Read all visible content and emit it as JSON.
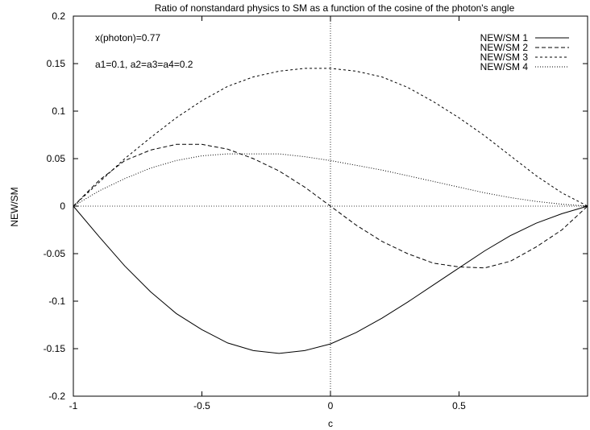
{
  "chart_data": {
    "type": "line",
    "title": "Ratio of nonstandard physics to SM as a function of the cosine of the photon's angle",
    "xlabel": "c",
    "ylabel": "NEW/SM",
    "xlim": [
      -1,
      1
    ],
    "ylim": [
      -0.2,
      0.2
    ],
    "x_ticks": [
      -1,
      -0.5,
      0,
      0.5,
      1
    ],
    "x_tick_labels": [
      "-1",
      "-0.5",
      "0",
      "0.5",
      ""
    ],
    "y_ticks": [
      -0.2,
      -0.15,
      -0.1,
      -0.05,
      0,
      0.05,
      0.1,
      0.15,
      0.2
    ],
    "y_tick_labels": [
      "-0.2",
      "-0.15",
      "-0.1",
      "-0.05",
      "0",
      "0.05",
      "0.1",
      "0.15",
      "0.2"
    ],
    "grid": false,
    "legend_position": "top-right",
    "annotations": [
      "x(photon)=0.77",
      "a1=0.1, a2=a3=a4=0.2"
    ],
    "x": [
      -1,
      -0.9,
      -0.8,
      -0.7,
      -0.6,
      -0.5,
      -0.4,
      -0.3,
      -0.2,
      -0.1,
      0,
      0.1,
      0.2,
      0.3,
      0.4,
      0.5,
      0.6,
      0.7,
      0.8,
      0.9,
      1
    ],
    "series": [
      {
        "name": "NEW/SM 1",
        "values": [
          0,
          -0.032,
          -0.063,
          -0.09,
          -0.113,
          -0.13,
          -0.144,
          -0.152,
          -0.155,
          -0.152,
          -0.145,
          -0.133,
          -0.118,
          -0.101,
          -0.083,
          -0.065,
          -0.047,
          -0.031,
          -0.018,
          -0.008,
          0
        ]
      },
      {
        "name": "NEW/SM 2",
        "values": [
          0,
          0.027,
          0.048,
          0.059,
          0.065,
          0.065,
          0.06,
          0.05,
          0.037,
          0.02,
          0,
          -0.02,
          -0.037,
          -0.05,
          -0.06,
          -0.064,
          -0.065,
          -0.058,
          -0.043,
          -0.025,
          0
        ]
      },
      {
        "name": "NEW/SM 3",
        "values": [
          0,
          0.025,
          0.05,
          0.072,
          0.093,
          0.111,
          0.126,
          0.136,
          0.142,
          0.145,
          0.145,
          0.142,
          0.136,
          0.125,
          0.11,
          0.093,
          0.074,
          0.053,
          0.032,
          0.014,
          0
        ]
      },
      {
        "name": "NEW/SM 4",
        "values": [
          0,
          0.016,
          0.029,
          0.04,
          0.048,
          0.053,
          0.055,
          0.055,
          0.055,
          0.052,
          0.048,
          0.043,
          0.038,
          0.032,
          0.026,
          0.02,
          0.014,
          0.009,
          0.005,
          0.002,
          0
        ]
      }
    ]
  }
}
